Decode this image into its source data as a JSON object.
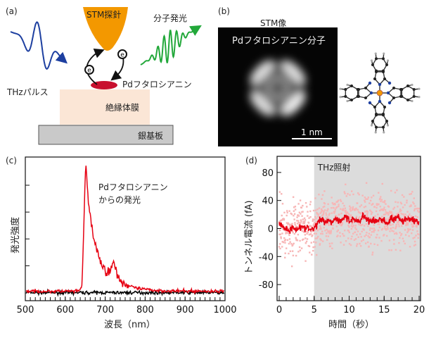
{
  "panel_a": {
    "label": "(a)",
    "tip_label": "STM探針",
    "thz_label": "THzパルス",
    "emission_label": "分子発光",
    "molecule_label": "Pdフタロシアニン",
    "insulator_label": "絶縁体膜",
    "substrate_label": "銀基板",
    "electron_symbol": "e",
    "colors": {
      "tip": "#f39800",
      "thz_wave": "#1d3fa0",
      "emission_wave": "#22a83a",
      "molecule": "#c8102e",
      "insulator": "#fbe6d6",
      "substrate": "#c9c9c9"
    }
  },
  "panel_b": {
    "label": "(b)",
    "title": "STM像",
    "image_label": "Pdフタロシアニン分子",
    "scale_bar": "1 nm",
    "colors": {
      "pd_atom": "#f39800",
      "nitrogen": "#1d3fa0",
      "carbon": "#222222",
      "hydrogen": "#aaaaaa"
    }
  },
  "chart_data": [
    {
      "panel": "(c)",
      "type": "line",
      "xlabel": "波長（nm）",
      "ylabel": "発光強度",
      "annotation": [
        "Pdフタロシアニン",
        "からの発光"
      ],
      "xlim": [
        500,
        1000
      ],
      "xticks": [
        500,
        600,
        700,
        800,
        900,
        1000
      ],
      "ylim": [
        -0.3,
        5.05
      ],
      "yticks_unlabeled": [
        1,
        2,
        3,
        4
      ],
      "grid": false,
      "series": [
        {
          "color": "#e60012",
          "x": [
            500,
            600,
            635,
            642,
            646,
            650,
            652,
            655,
            658,
            662,
            668,
            675,
            685,
            695,
            705,
            712,
            718,
            722,
            728,
            735,
            745,
            760,
            780,
            800,
            830,
            870,
            1000
          ],
          "y": [
            0.05,
            0.05,
            0.05,
            0.3,
            2.2,
            4.4,
            4.7,
            4.0,
            3.4,
            2.9,
            2.3,
            1.7,
            1.3,
            0.9,
            0.75,
            0.85,
            1.05,
            1.1,
            0.8,
            0.55,
            0.35,
            0.25,
            0.15,
            0.12,
            0.08,
            0.06,
            0.05
          ]
        },
        {
          "color": "#000000",
          "x": [
            500,
            1000
          ],
          "y": [
            0.0,
            0.0
          ]
        }
      ]
    },
    {
      "panel": "(d)",
      "type": "scatter",
      "xlabel": "時間（秒）",
      "ylabel": "トンネル電流 (fA)",
      "annotation": "THz照射",
      "shaded_region": {
        "x": [
          5,
          20
        ],
        "color": "#dcdcdc"
      },
      "xlim": [
        0,
        20
      ],
      "xticks": [
        0,
        5,
        10,
        15,
        20
      ],
      "ylim": [
        -103,
        103
      ],
      "yticks": [
        80,
        40,
        0,
        -40,
        -80
      ],
      "grid": false,
      "scatter_color": "#f7b6b6",
      "scatter_spread_fA": 20,
      "line": {
        "color": "#e60012",
        "x": [
          0,
          0.5,
          1,
          1.5,
          2,
          2.5,
          3,
          3.5,
          4,
          4.5,
          5,
          5.5,
          6,
          6.5,
          7,
          7.5,
          8,
          8.5,
          9,
          9.5,
          10,
          10.5,
          11,
          11.5,
          12,
          12.5,
          13,
          13.5,
          14,
          14.5,
          15,
          15.5,
          16,
          16.5,
          17,
          17.5,
          18,
          18.5,
          19,
          19.5,
          20
        ],
        "y": [
          8,
          2,
          0,
          -3,
          2,
          -1,
          3,
          0,
          1,
          -2,
          0,
          8,
          14,
          10,
          12,
          9,
          15,
          11,
          13,
          18,
          10,
          14,
          12,
          9,
          20,
          13,
          10,
          12,
          9,
          14,
          11,
          7,
          15,
          12,
          16,
          8,
          14,
          12,
          13,
          11,
          10
        ]
      }
    }
  ]
}
